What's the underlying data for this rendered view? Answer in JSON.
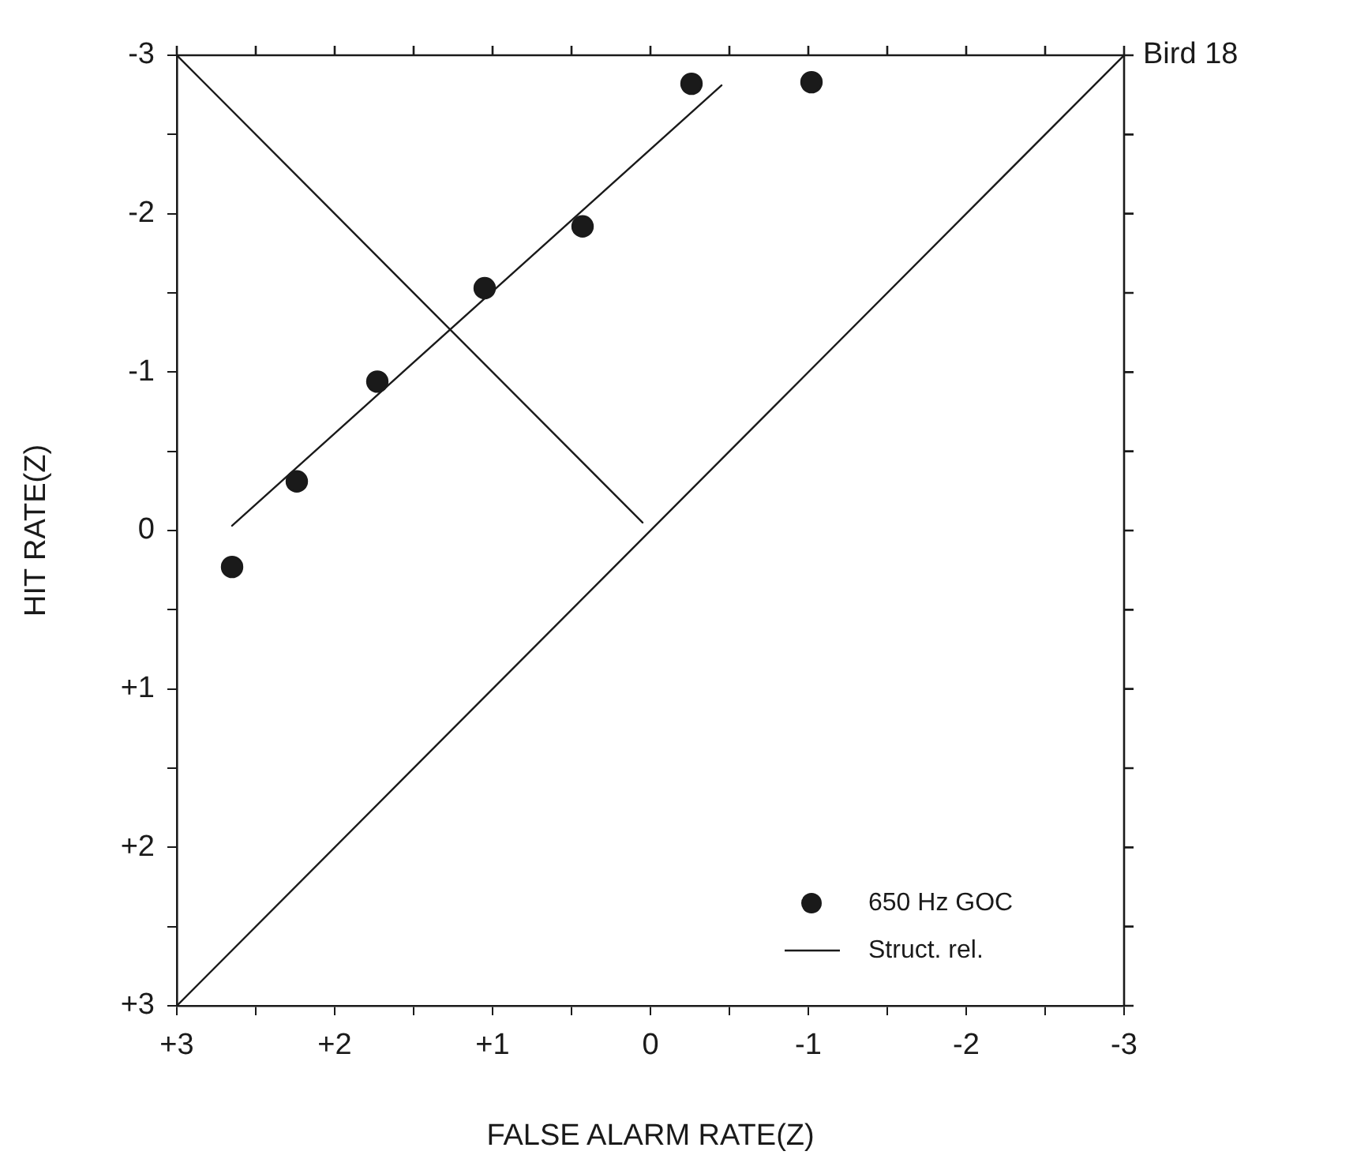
{
  "chart_data": {
    "type": "scatter",
    "xlabel": "FALSE ALARM RATE(Z)",
    "ylabel": "HIT RATE(Z)",
    "annotations": [
      "Bird 18"
    ],
    "xlim": [
      3,
      -3
    ],
    "ylim": [
      3,
      -3
    ],
    "xticks": [
      {
        "value": 3,
        "label": "+3"
      },
      {
        "value": 2.5,
        "label": null
      },
      {
        "value": 2,
        "label": "+2"
      },
      {
        "value": 1.5,
        "label": null
      },
      {
        "value": 1,
        "label": "+1"
      },
      {
        "value": 0.5,
        "label": null
      },
      0,
      {
        "value": -0.5,
        "label": null
      },
      -1,
      {
        "value": -1.5,
        "label": null
      },
      -2,
      {
        "value": -2.5,
        "label": null
      },
      -3
    ],
    "yticks": [
      {
        "value": 3,
        "label": "+3"
      },
      {
        "value": 2.5,
        "label": null
      },
      {
        "value": 2,
        "label": "+2"
      },
      {
        "value": 1.5,
        "label": null
      },
      {
        "value": 1,
        "label": "+1"
      },
      {
        "value": 0.5,
        "label": null
      },
      0,
      {
        "value": -0.5,
        "label": null
      },
      -1,
      {
        "value": -1.5,
        "label": null
      },
      -2,
      {
        "value": -2.5,
        "label": null
      },
      -3
    ],
    "grid": false,
    "legend": "bottom right",
    "series": [
      {
        "name": "650 Hz GOC",
        "marker": "circle",
        "color": "#1a1a1a",
        "x": [
          2.65,
          2.24,
          1.73,
          1.05,
          0.43,
          -0.26,
          -1.02
        ],
        "values": [
          0.23,
          -0.31,
          -0.94,
          -1.53,
          -1.92,
          -2.82,
          -2.83
        ]
      },
      {
        "name": "Struct. rel.",
        "type": "line",
        "marker": "none",
        "color": "#1a1a1a",
        "x": [
          2.65,
          -0.45
        ],
        "values": [
          -0.03,
          -2.81
        ]
      },
      {
        "type": "line",
        "marker": "none",
        "color": "#1a1a1a",
        "x": [
          3,
          -3
        ],
        "values": [
          3,
          -3
        ]
      },
      {
        "type": "line",
        "marker": "none",
        "color": "#1a1a1a",
        "x": [
          3,
          0.05
        ],
        "values": [
          -3,
          -0.05
        ]
      }
    ]
  }
}
